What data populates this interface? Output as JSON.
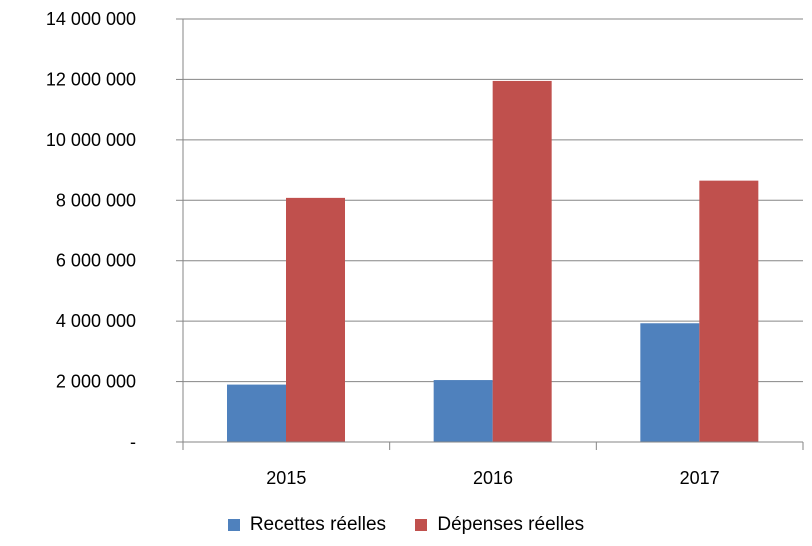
{
  "chart_data": {
    "type": "bar",
    "categories": [
      "2015",
      "2016",
      "2017"
    ],
    "series": [
      {
        "name": "Recettes réelles",
        "values": [
          1900000,
          2050000,
          3930000
        ],
        "color": "#4F81BD"
      },
      {
        "name": "Dépenses  réelles",
        "values": [
          8080000,
          11950000,
          8650000
        ],
        "color": "#C0504D"
      }
    ],
    "ylim": [
      0,
      14000000
    ],
    "yticks": [
      0,
      2000000,
      4000000,
      6000000,
      8000000,
      10000000,
      12000000,
      14000000
    ],
    "ytick_labels": [
      "-",
      "2 000 000",
      "4 000 000",
      "6 000 000",
      "8 000 000",
      "10 000 000",
      "12 000 000",
      "14 000 000"
    ],
    "grid": true,
    "legend_position": "bottom"
  }
}
